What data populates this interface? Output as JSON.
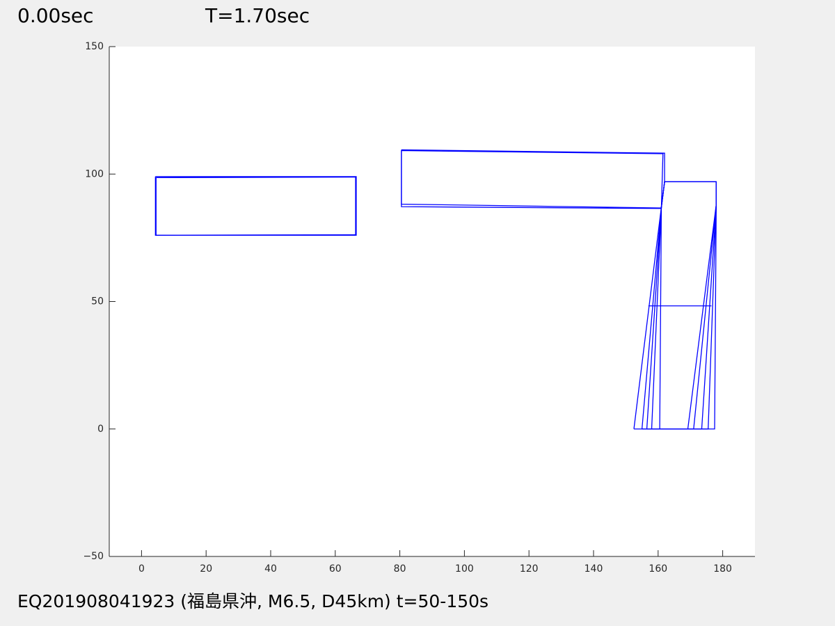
{
  "header": {
    "left": "0.00sec",
    "right": "T=1.70sec"
  },
  "footer": {
    "caption": "EQ201908041923 (福島県沖, M6.5, D45km) t=50-150s"
  },
  "chart_data": {
    "type": "line",
    "xlim": [
      -10,
      190
    ],
    "ylim": [
      -50,
      150
    ],
    "xticks": [
      0,
      20,
      40,
      60,
      80,
      100,
      120,
      140,
      160,
      180
    ],
    "yticks": [
      {
        "value": -50,
        "label": "−50"
      },
      0,
      50,
      100,
      150
    ],
    "series": [
      {
        "color": "#0000ff",
        "x": [
          4.3,
          66.5,
          66.5,
          4.3,
          4.3
        ],
        "values": [
          99,
          99,
          76,
          76,
          99
        ]
      },
      {
        "color": "#0000ff",
        "x": [
          4.5,
          66.3,
          66.3,
          4.5,
          4.5
        ],
        "values": [
          98.6,
          98.8,
          76.2,
          76.0,
          98.6
        ]
      },
      {
        "color": "#0000ff",
        "x": [
          80.5,
          162,
          162,
          161,
          80.5,
          80.5
        ],
        "values": [
          109.5,
          108.2,
          97,
          86.7,
          88.2,
          109.5
        ]
      },
      {
        "color": "#0000ff",
        "x": [
          80.5,
          161.5,
          161,
          80.5,
          80.5
        ],
        "values": [
          109.2,
          108,
          86.5,
          87.2,
          109.2
        ]
      },
      {
        "color": "#0000ff",
        "x": [
          152.5,
          161,
          162,
          178,
          178,
          169.2,
          152.5
        ],
        "values": [
          0,
          87,
          97,
          97,
          88,
          0,
          0
        ]
      },
      {
        "color": "#0000ff",
        "x": [
          155,
          161,
          162,
          178,
          178,
          171,
          155
        ],
        "values": [
          0,
          87,
          97,
          97,
          88,
          0,
          0
        ]
      },
      {
        "color": "#0000ff",
        "x": [
          156.5,
          161,
          162,
          178,
          178,
          173.5,
          156.5
        ],
        "values": [
          0,
          87,
          97,
          97,
          88,
          0,
          0
        ]
      },
      {
        "color": "#0000ff",
        "x": [
          158,
          161,
          162,
          178,
          178,
          175.5,
          158
        ],
        "values": [
          0,
          87,
          97,
          97,
          88,
          0,
          0
        ]
      },
      {
        "color": "#0000ff",
        "x": [
          160.5,
          161,
          162,
          178,
          178,
          177.5,
          160.5
        ],
        "values": [
          0,
          87,
          97,
          97,
          88,
          0,
          0
        ]
      },
      {
        "color": "#0000ff",
        "x": [
          157,
          176.5
        ],
        "values": [
          48.3,
          48.3
        ]
      }
    ]
  }
}
